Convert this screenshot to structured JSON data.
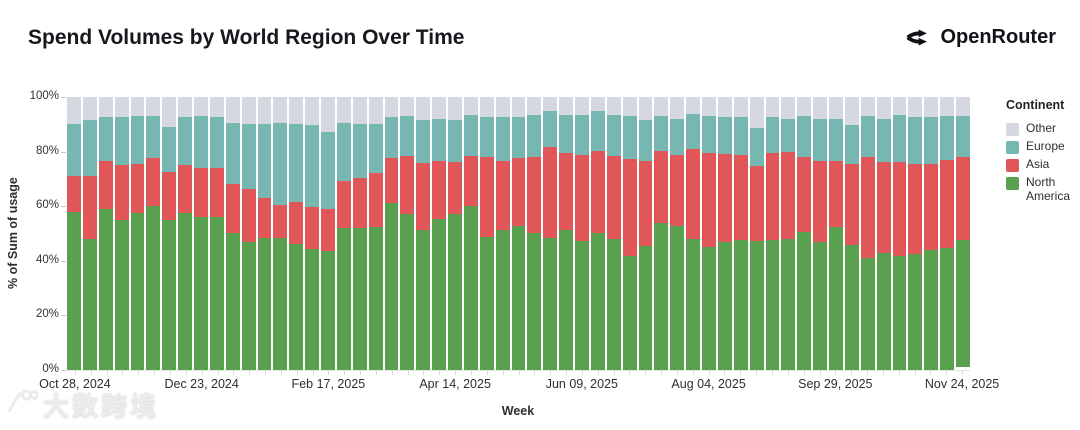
{
  "header": {
    "title": "Spend Volumes by World Region Over Time",
    "brand": {
      "name": "OpenRouter",
      "icon": "openrouter-split-arrows-icon"
    }
  },
  "watermark": {
    "logo_icon": "dashukuajing-100-logo-icon",
    "text": "大数跨境"
  },
  "legend": {
    "title": "Continent",
    "items": [
      {
        "label": "Other",
        "color": "#d6d8e1"
      },
      {
        "label": "Europe",
        "color": "#76b7b2"
      },
      {
        "label": "Asia",
        "color": "#e15759"
      },
      {
        "label": "North America",
        "color": "#59a14f"
      }
    ]
  },
  "chart_data": {
    "type": "bar",
    "stacked": true,
    "stack_mode": "percent",
    "title": "Spend Volumes by World Region Over Time",
    "xlabel": "Week",
    "ylabel": "% of Sum of usage",
    "ylim": [
      0,
      100
    ],
    "grid": false,
    "legend_position": "right",
    "y_tick_labels": [
      "0%",
      "20%",
      "40%",
      "60%",
      "80%",
      "100%"
    ],
    "weeks": 57,
    "x_tick_labels": [
      "Oct 28, 2024",
      "Dec 23, 2024",
      "Feb 17, 2025",
      "Apr 14, 2025",
      "Jun 09, 2025",
      "Aug 04, 2025",
      "Sep 29, 2025",
      "Nov 24, 2025"
    ],
    "x_tick_week_indices": [
      0,
      8,
      16,
      24,
      32,
      40,
      48,
      56
    ],
    "series": [
      {
        "name": "North America",
        "color": "#59a14f",
        "values": [
          58,
          48,
          59,
          55,
          57.5,
          60,
          55,
          57.5,
          56,
          56,
          50,
          47,
          48.2,
          48.4,
          46.3,
          44.5,
          43.5,
          52.1,
          52.1,
          52.4,
          61.2,
          57.3,
          51.3,
          55.4,
          57.2,
          60.2,
          48.8,
          51.3,
          52.7,
          50.3,
          48.5,
          51.3,
          47.3,
          50.3,
          48.1,
          41.6,
          45.5,
          53.9,
          52.7,
          47.9,
          45.2,
          46.9,
          47.6,
          47.3,
          47.6,
          47.9,
          50.5,
          46.9,
          52.5,
          45.7,
          41.2,
          43,
          41.6,
          42.4,
          44.2,
          44.6,
          46.7
        ]
      },
      {
        "name": "Asia",
        "color": "#e15759",
        "values": [
          13,
          23,
          17.5,
          20,
          18,
          17.5,
          17.5,
          17.5,
          18,
          18,
          18,
          19.2,
          14.8,
          12.2,
          15.3,
          15.3,
          15.4,
          17,
          18.3,
          19.9,
          16.4,
          21.2,
          24.7,
          21.3,
          19,
          18.3,
          29.4,
          25.4,
          24.9,
          27.9,
          33.3,
          28.1,
          31.5,
          30.1,
          30.4,
          35.7,
          30.9,
          26.5,
          26.1,
          32.9,
          34.2,
          32.3,
          31.2,
          27.5,
          31.8,
          31.9,
          27.7,
          29.8,
          23.9,
          29.8,
          36.7,
          33.1,
          34.5,
          33,
          31.8,
          32.4,
          30.3
        ]
      },
      {
        "name": "Europe",
        "color": "#76b7b2",
        "values": [
          19,
          20.5,
          16,
          17.5,
          17.5,
          15.5,
          16.5,
          17.5,
          19,
          18.5,
          22.5,
          23.8,
          27,
          29.9,
          28.4,
          29.8,
          28.3,
          21.4,
          19.6,
          17.9,
          14.9,
          14.5,
          15.5,
          15.4,
          15.3,
          14.8,
          14.3,
          16,
          15.1,
          15.1,
          13.1,
          13.9,
          14.5,
          14.5,
          14.8,
          15.7,
          15.1,
          12.6,
          13.3,
          12.9,
          13.6,
          13.5,
          13.7,
          13.7,
          13.3,
          12.3,
          14.8,
          15.4,
          15.7,
          14.2,
          15.1,
          16,
          17.2,
          17.3,
          17.3,
          16,
          14.9
        ]
      },
      {
        "name": "Other",
        "color": "#d6d8e1",
        "values": [
          10,
          8.5,
          7.5,
          7.5,
          7,
          7,
          11,
          7.5,
          7,
          7.5,
          9.5,
          10,
          10,
          9.5,
          10,
          10.4,
          12.8,
          9.5,
          10,
          9.8,
          7.5,
          7,
          8.5,
          7.9,
          8.5,
          6.7,
          7.5,
          7.3,
          7.3,
          6.7,
          5.1,
          6.7,
          6.7,
          5.1,
          6.7,
          7,
          8.5,
          7,
          7.9,
          6.3,
          7,
          7.3,
          7.5,
          11.5,
          7.3,
          7.9,
          7,
          7.9,
          7.9,
          10.3,
          7,
          7.9,
          6.7,
          7.3,
          7.3,
          7,
          7.1
        ]
      }
    ]
  }
}
